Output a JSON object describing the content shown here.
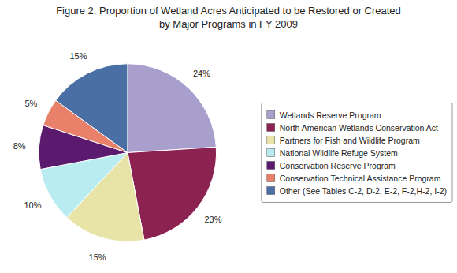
{
  "chart_data": {
    "type": "pie",
    "title": "Figure 2. Proportion of Wetland Acres Anticipated to be Restored or Created\nby Major Programs in FY 2009",
    "categories": [
      "Wetlands Reserve Program",
      "North American Wetlands Conservation Act",
      "Partners for Fish and Wildlife Program",
      "National Wildlife Refuge System",
      "Conservation Reserve Program",
      "Conservation Technical Assistance Program",
      "Other (See Tables C-2, D-2, E-2, F-2,H-2, I-2)"
    ],
    "values": [
      24,
      23,
      15,
      10,
      8,
      5,
      15
    ],
    "value_labels": [
      "24%",
      "23%",
      "15%",
      "10%",
      "8%",
      "5%",
      "15%"
    ],
    "colors": [
      "#a89fcc",
      "#8b2252",
      "#e8e4a8",
      "#b8ecf0",
      "#5c1a6e",
      "#e8806a",
      "#4a6fa5"
    ],
    "data_labels": true,
    "legend": "right"
  }
}
